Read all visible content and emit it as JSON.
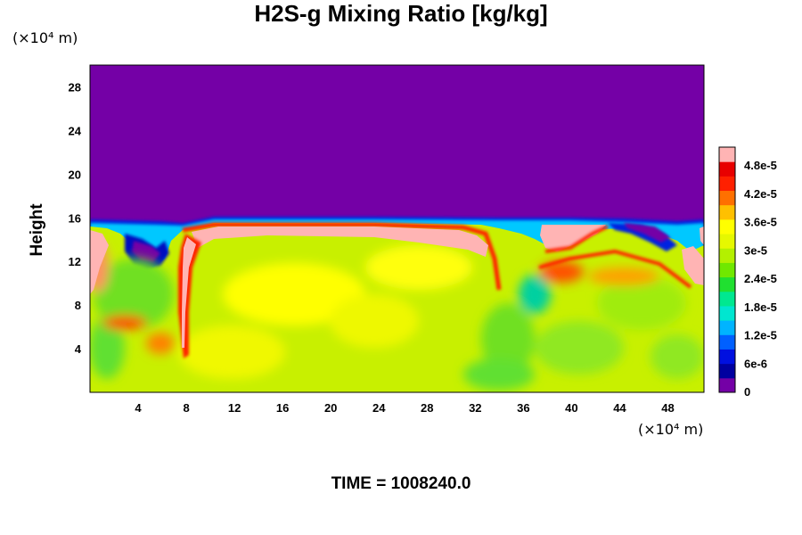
{
  "chart_data": {
    "type": "heatmap",
    "title": "H2S-g Mixing Ratio [kg/kg]",
    "ylabel": "Height",
    "xlabel": "",
    "x_unit": "(×10⁴ m)",
    "y_unit": "(×10⁴ m)",
    "xlim": [
      0,
      51
    ],
    "ylim": [
      0,
      30
    ],
    "x_ticks": [
      "4",
      "8",
      "12",
      "16",
      "20",
      "24",
      "28",
      "32",
      "36",
      "40",
      "44",
      "48"
    ],
    "y_ticks": [
      "4",
      "8",
      "12",
      "16",
      "20",
      "24",
      "28"
    ],
    "colorbar": {
      "range": [
        0,
        5.2e-05
      ],
      "labels": [
        "0",
        "6e-6",
        "1.2e-5",
        "1.8e-5",
        "2.4e-5",
        "3e-5",
        "3.6e-5",
        "4.2e-5",
        "4.8e-5"
      ],
      "colors": [
        "#7400a6",
        "#0000a0",
        "#0010e0",
        "#0060ff",
        "#00b4ff",
        "#00e6d0",
        "#00e890",
        "#20e030",
        "#70e800",
        "#b4f000",
        "#e6f800",
        "#ffff00",
        "#ffc000",
        "#ff7000",
        "#ff2000",
        "#e80000",
        "#ffb4b4"
      ]
    },
    "background_value": 0,
    "field_top_height": 15.5,
    "annotation": "TIME = 1008240.0"
  }
}
